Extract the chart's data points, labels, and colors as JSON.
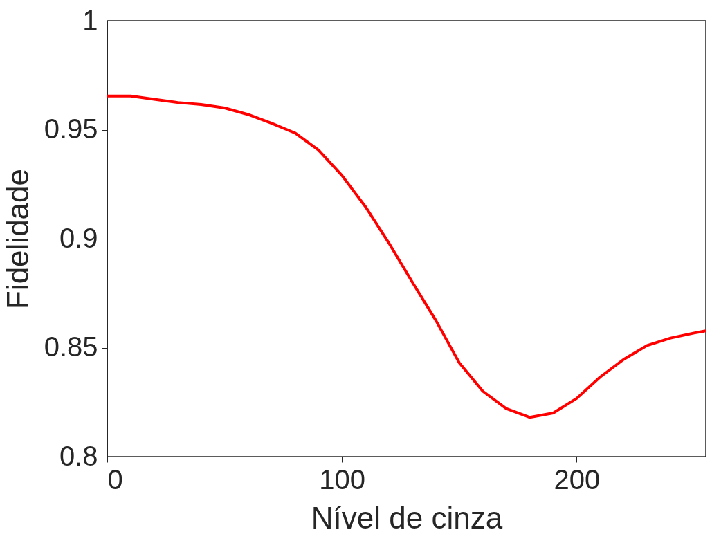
{
  "chart_data": {
    "type": "line",
    "xlabel": "Nível de cinza",
    "ylabel": "Fidelidade",
    "x": [
      0,
      10,
      20,
      30,
      40,
      50,
      60,
      70,
      80,
      90,
      100,
      110,
      120,
      130,
      140,
      150,
      160,
      170,
      180,
      190,
      200,
      210,
      220,
      230,
      240,
      250,
      255
    ],
    "series": [
      {
        "color": "#ff0000",
        "values": [
          0.9655,
          0.9655,
          0.964,
          0.9625,
          0.9616,
          0.96,
          0.957,
          0.953,
          0.9485,
          0.9407,
          0.929,
          0.9147,
          0.898,
          0.88,
          0.8625,
          0.843,
          0.83,
          0.822,
          0.818,
          0.82,
          0.8267,
          0.8365,
          0.8446,
          0.851,
          0.8544,
          0.8567,
          0.8577
        ]
      }
    ],
    "xlim": [
      0,
      255
    ],
    "xticks": [
      0,
      100,
      200
    ],
    "ylim": [
      0.8,
      1
    ],
    "yticks": [
      0.8,
      0.85,
      0.9,
      0.95,
      1
    ],
    "grid": false,
    "legend": false,
    "marker": "none",
    "line_style": "solid"
  }
}
